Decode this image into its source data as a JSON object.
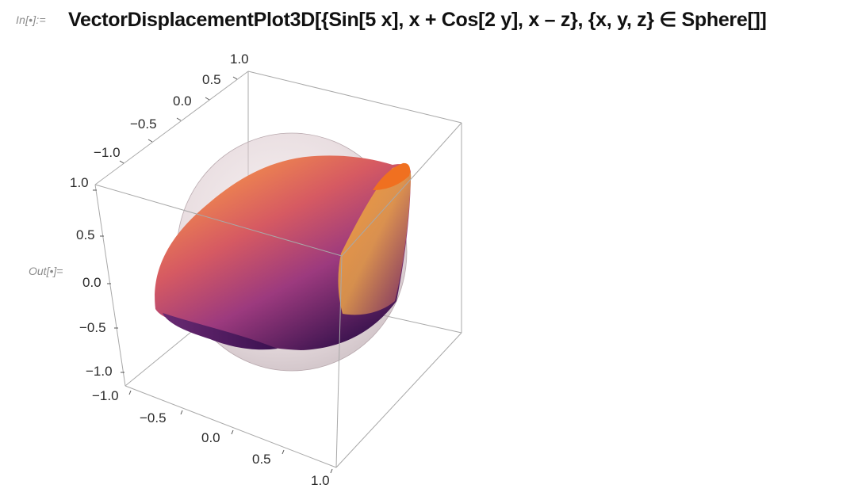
{
  "notebook": {
    "input_label": "In[•]:=",
    "output_label": "Out[•]=",
    "input_code": "VectorDisplacementPlot3D[{Sin[5 x], x + Cos[2 y], x – z}, {x, y, z} ∈ Sphere[]]"
  },
  "plot": {
    "type": "3d-surface",
    "axes": {
      "top_ticks": [
        "1.0",
        "0.5",
        "0.0",
        "−0.5",
        "−1.0"
      ],
      "left_ticks": [
        "1.0",
        "0.5",
        "0.0",
        "−0.5",
        "−1.0"
      ],
      "bottom_ticks": [
        "−1.0",
        "−0.5",
        "0.0",
        "0.5",
        "1.0"
      ]
    },
    "colors": {
      "surface_light": "#f08a3e",
      "surface_mid": "#c2477a",
      "surface_dark": "#4a1a5a",
      "sphere": "#d9c9cd",
      "box": "#a0a0a0"
    }
  }
}
